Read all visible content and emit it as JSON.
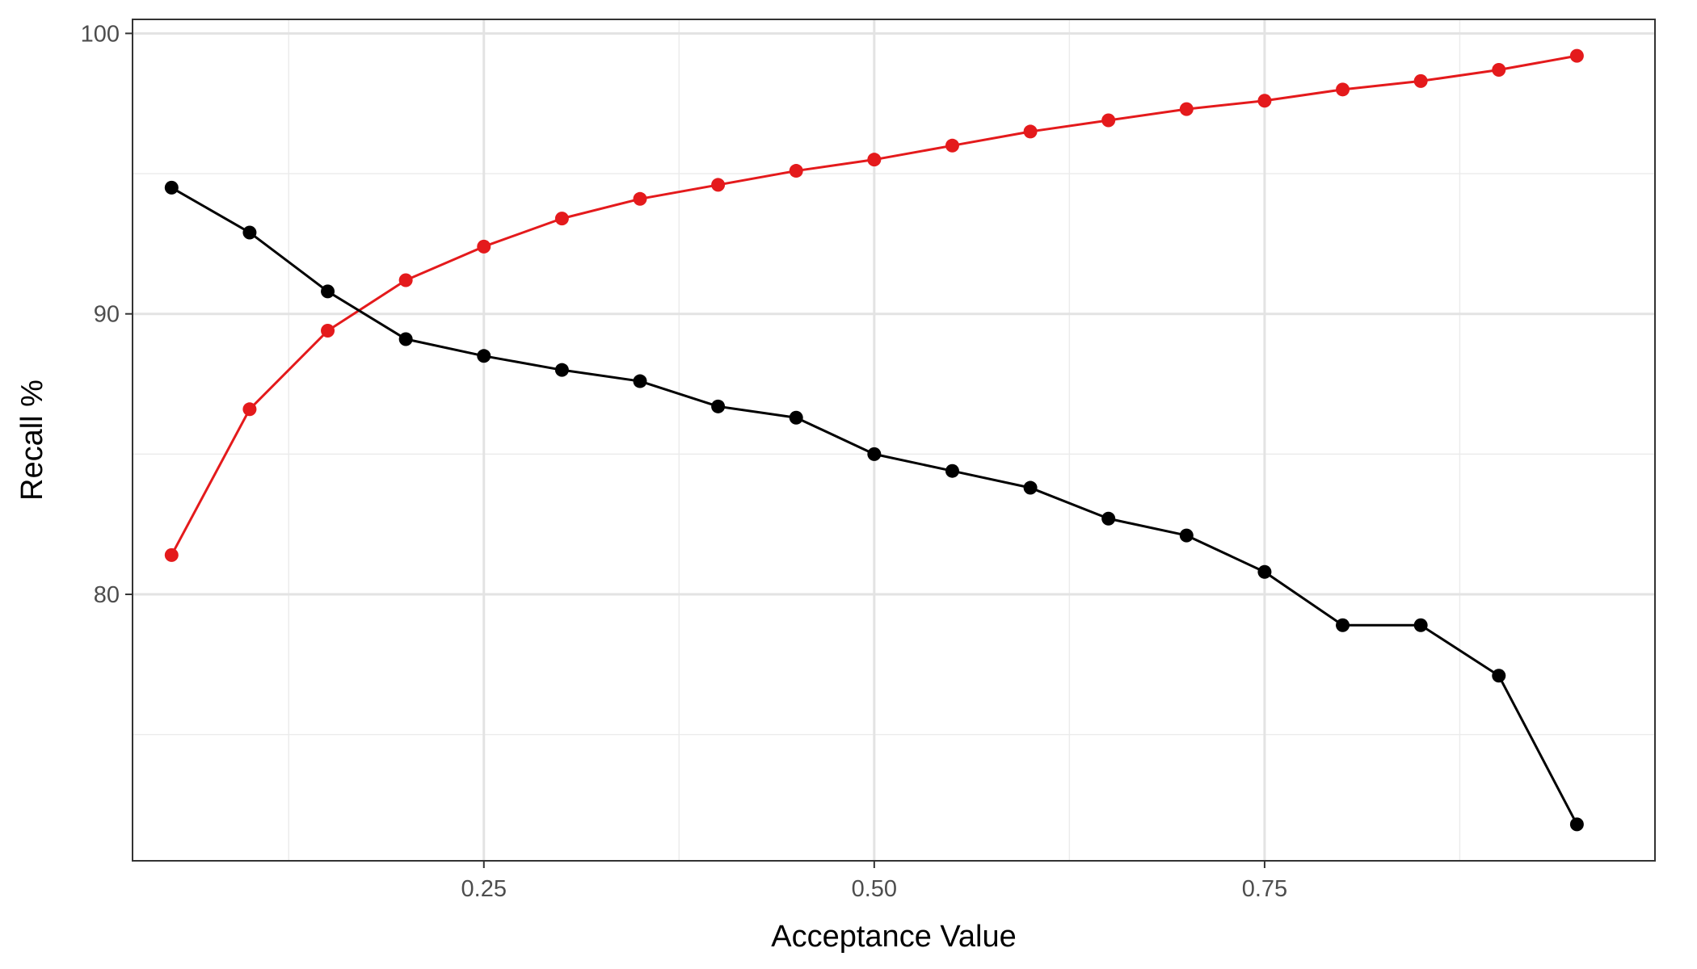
{
  "chart_data": {
    "type": "line",
    "title": "",
    "xlabel": "Acceptance Value",
    "ylabel": "Recall %",
    "xlim": [
      0.025,
      1.0
    ],
    "ylim": [
      70.5,
      100.5
    ],
    "x_ticks": [
      0.25,
      0.5,
      0.75
    ],
    "x_tick_labels": [
      "0.25",
      "0.50",
      "0.75"
    ],
    "x_minor_ticks": [
      0.125,
      0.375,
      0.625,
      0.875
    ],
    "y_ticks": [
      80,
      90,
      100
    ],
    "y_tick_labels": [
      "80",
      "90",
      "100"
    ],
    "y_minor_ticks": [
      75,
      85,
      95
    ],
    "grid": true,
    "legend": "none",
    "x": [
      0.05,
      0.1,
      0.15,
      0.2,
      0.25,
      0.3,
      0.35,
      0.4,
      0.45,
      0.5,
      0.55,
      0.6,
      0.65,
      0.7,
      0.75,
      0.8,
      0.85,
      0.9,
      0.95
    ],
    "series": [
      {
        "color": "#e41a1c",
        "values": [
          81.4,
          86.6,
          89.4,
          91.2,
          92.4,
          93.4,
          94.1,
          94.6,
          95.1,
          95.5,
          96.0,
          96.5,
          96.9,
          97.3,
          97.6,
          98.0,
          98.3,
          98.7,
          99.2
        ]
      },
      {
        "color": "#000000",
        "values": [
          94.5,
          92.9,
          90.8,
          89.1,
          88.5,
          88.0,
          87.6,
          86.7,
          86.3,
          85.0,
          84.4,
          83.8,
          82.7,
          82.1,
          80.8,
          78.9,
          78.9,
          77.1,
          71.8
        ]
      }
    ]
  }
}
